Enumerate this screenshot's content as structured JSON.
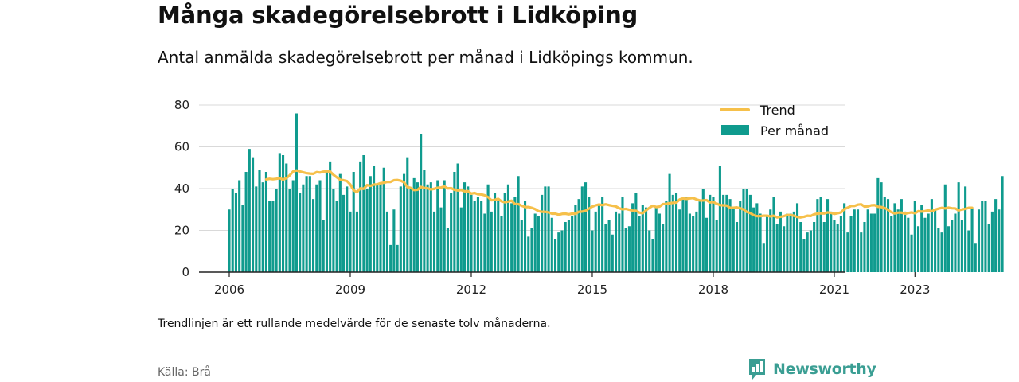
{
  "header": {
    "title": "Många skadegörelsebrott i Lidköping",
    "subtitle": "Antal anmälda skadegörelsebrott per månad i Lidköpings kommun."
  },
  "footer": {
    "note": "Trendlinjen är ett rullande medelvärde för de senaste tolv månaderna.",
    "source": "Källa: Brå",
    "brand": "Newsworthy",
    "brand_icon": "newsworthy-logo-icon"
  },
  "colors": {
    "bars": "#0f9b8e",
    "trend": "#f6c04a",
    "grid": "#d9d9d9",
    "axis": "#222222",
    "brand": "#3a9e93"
  },
  "chart_data": {
    "type": "bar",
    "title": "Många skadegörelsebrott i Lidköping",
    "subtitle": "Antal anmälda skadegörelsebrott per månad i Lidköpings kommun.",
    "x_start": "2006-01",
    "x_ticks": [
      "2006",
      "2009",
      "2012",
      "2015",
      "2018",
      "2021",
      "2023"
    ],
    "ylim": [
      0,
      80
    ],
    "yticks": [
      0,
      20,
      40,
      60,
      80
    ],
    "grid": true,
    "legend_position": "top-right",
    "series": [
      {
        "name": "Per månad",
        "type": "bar",
        "values": [
          30,
          40,
          38,
          44,
          32,
          48,
          59,
          55,
          41,
          49,
          43,
          48,
          34,
          34,
          40,
          57,
          56,
          52,
          40,
          44,
          76,
          38,
          42,
          46,
          46,
          35,
          42,
          44,
          25,
          48,
          53,
          40,
          34,
          47,
          37,
          41,
          29,
          48,
          29,
          53,
          56,
          40,
          46,
          51,
          42,
          43,
          50,
          29,
          13,
          30,
          13,
          41,
          47,
          55,
          40,
          45,
          43,
          66,
          49,
          42,
          43,
          29,
          44,
          31,
          44,
          21,
          38,
          48,
          52,
          31,
          43,
          41,
          37,
          34,
          36,
          34,
          28,
          42,
          29,
          38,
          34,
          27,
          38,
          42,
          33,
          36,
          46,
          25,
          34,
          17,
          21,
          28,
          27,
          37,
          41,
          41,
          26,
          16,
          19,
          20,
          24,
          25,
          27,
          32,
          35,
          41,
          43,
          36,
          20,
          29,
          32,
          36,
          23,
          25,
          18,
          29,
          28,
          36,
          21,
          22,
          33,
          38,
          27,
          32,
          31,
          20,
          16,
          31,
          28,
          23,
          34,
          47,
          37,
          38,
          30,
          35,
          36,
          28,
          27,
          29,
          34,
          40,
          26,
          37,
          36,
          25,
          51,
          37,
          37,
          35,
          31,
          24,
          34,
          40,
          40,
          37,
          31,
          33,
          28,
          14,
          27,
          30,
          36,
          23,
          29,
          22,
          28,
          28,
          29,
          33,
          24,
          16,
          19,
          20,
          24,
          35,
          36,
          24,
          35,
          29,
          25,
          23,
          27,
          33,
          19,
          27,
          30,
          30,
          19,
          24,
          30,
          28,
          28,
          45,
          43,
          36,
          35,
          27,
          33,
          30,
          35,
          29,
          26,
          18,
          34,
          22,
          32,
          26,
          28,
          35,
          30,
          21,
          19,
          42,
          22,
          25,
          28,
          43,
          25,
          41,
          20,
          31,
          14,
          30,
          34,
          34,
          23,
          29,
          35,
          30,
          46
        ]
      },
      {
        "name": "Trend",
        "type": "line",
        "start": "2006-12",
        "values": [
          44.4,
          44.7,
          44.5,
          44.7,
          45,
          44.3,
          45,
          46.4,
          48.2,
          48.7,
          48.2,
          47.8,
          47.4,
          47.2,
          47.1,
          47.9,
          47.7,
          48.1,
          48.3,
          48.2,
          46.6,
          45.4,
          44.2,
          44,
          43.6,
          42,
          39.2,
          38.3,
          40.1,
          39.9,
          41.7,
          41.3,
          41.9,
          42,
          42.6,
          42.8,
          43.2,
          43.2,
          44,
          44.1,
          43.8,
          43,
          40.7,
          40.3,
          39.3,
          39.4,
          40.8,
          40.3,
          40.1,
          39.6,
          39.9,
          40.4,
          40.5,
          41,
          40.1,
          40.2,
          39.4,
          39.1,
          39.3,
          38.7,
          38.8,
          37.6,
          37.9,
          37.3,
          37.2,
          36.8,
          35.9,
          34.4,
          34.6,
          35.1,
          33.9,
          33.5,
          33.8,
          34.2,
          32.6,
          32.6,
          31.8,
          31.2,
          31.2,
          30.8,
          30.2,
          29.2,
          28.9,
          28.9,
          28.6,
          28,
          28,
          27.5,
          27.9,
          28,
          27.7,
          28,
          27.9,
          28.9,
          29,
          29.4,
          30.4,
          31.4,
          32,
          32.4,
          32.1,
          32.5,
          32.1,
          31.8,
          31.5,
          30.6,
          30.1,
          30.3,
          29.9,
          29.4,
          29.4,
          28.5,
          28.2,
          29.6,
          30.8,
          31.8,
          31.2,
          31.4,
          32.6,
          32.7,
          33,
          33.2,
          33.3,
          34.8,
          35.3,
          35.1,
          35.3,
          35.5,
          34.8,
          34.3,
          34.3,
          34.5,
          33.4,
          33.6,
          32.8,
          32.1,
          32,
          31.9,
          30.8,
          30.8,
          31,
          30.6,
          30,
          28.8,
          28.3,
          27.3,
          26.8,
          26.8,
          27,
          27,
          26.7,
          27,
          26.2,
          26.5,
          26.8,
          27.4,
          27.3,
          27,
          26.4,
          26.2,
          26.5,
          27,
          26.9,
          27.7,
          28,
          28.2,
          28.1,
          28.6,
          28.4,
          27.9,
          28.2,
          28.6,
          30.2,
          30.9,
          31.7,
          31.7,
          32.3,
          32.5,
          31.4,
          31.5,
          32,
          32.1,
          31.3,
          31.2,
          30.7,
          29.8,
          28.7,
          28.1,
          28.5,
          28.5,
          28,
          28.3,
          28.6,
          28.2,
          29.2,
          29,
          29.2,
          29.6,
          29.1,
          29.9,
          30.4,
          30.8,
          30.5,
          30.9,
          30.6,
          30.5,
          29.6,
          30,
          30.3,
          30.8,
          30.8
        ]
      }
    ],
    "legend": [
      "Trend",
      "Per månad"
    ]
  }
}
